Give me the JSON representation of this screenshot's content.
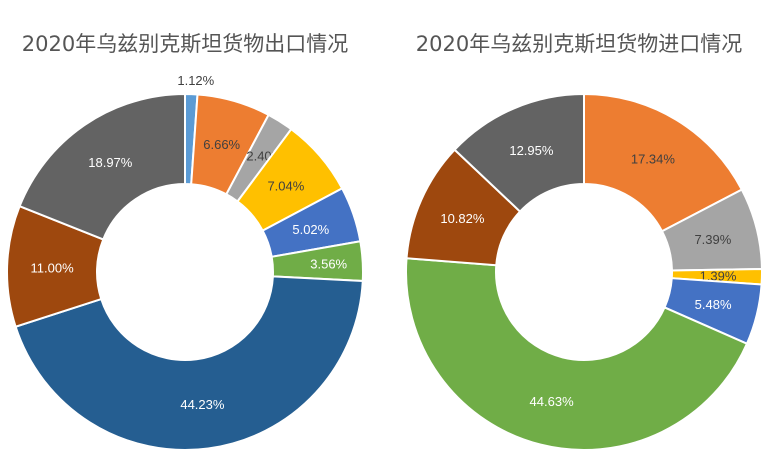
{
  "chart_data": [
    {
      "type": "pie",
      "title": "2020年乌兹别克斯坦货物出口情况",
      "slices": [
        {
          "value": 1.12,
          "label": "1.12%",
          "color": "#5B9BD5"
        },
        {
          "value": 6.66,
          "label": "6.66%",
          "color": "#ED7D31"
        },
        {
          "value": 2.4,
          "label": "2.40%",
          "color": "#A5A5A5"
        },
        {
          "value": 7.04,
          "label": "7.04%",
          "color": "#FFC000"
        },
        {
          "value": 5.02,
          "label": "5.02%",
          "color": "#4472C4"
        },
        {
          "value": 3.56,
          "label": "3.56%",
          "color": "#70AD47"
        },
        {
          "value": 44.23,
          "label": "44.23%",
          "color": "#255E91"
        },
        {
          "value": 11.0,
          "label": "11.00%",
          "color": "#9E480E"
        },
        {
          "value": 18.97,
          "label": "18.97%",
          "color": "#636363"
        }
      ]
    },
    {
      "type": "pie",
      "title": "2020年乌兹别克斯坦货物进口情况",
      "slices": [
        {
          "value": 17.34,
          "label": "17.34%",
          "color": "#ED7D31"
        },
        {
          "value": 7.39,
          "label": "7.39%",
          "color": "#A5A5A5"
        },
        {
          "value": 1.39,
          "label": "1.39%",
          "color": "#FFC000"
        },
        {
          "value": 5.48,
          "label": "5.48%",
          "color": "#4472C4"
        },
        {
          "value": 44.63,
          "label": "44.63%",
          "color": "#70AD47"
        },
        {
          "value": 10.82,
          "label": "10.82%",
          "color": "#9E480E"
        },
        {
          "value": 12.95,
          "label": "12.95%",
          "color": "#636363"
        }
      ]
    }
  ]
}
